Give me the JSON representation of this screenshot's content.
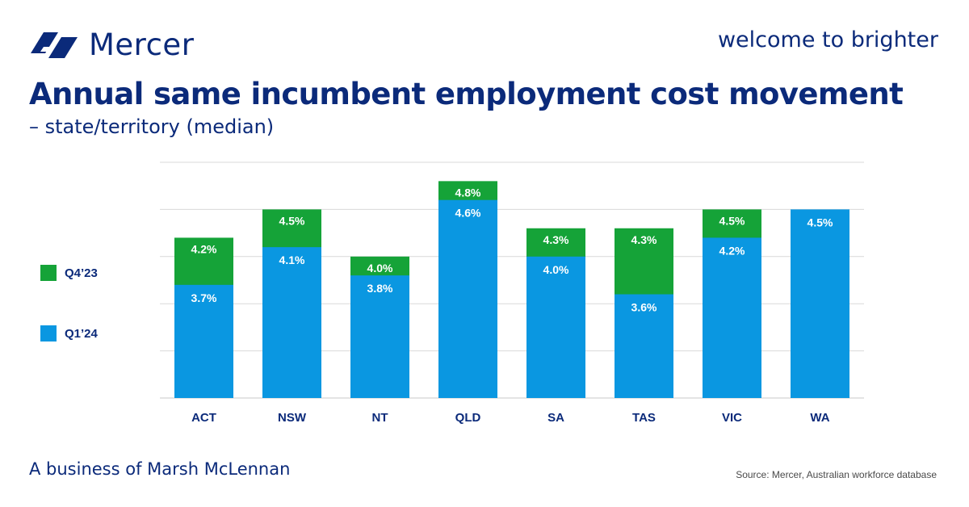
{
  "header": {
    "brand": "Mercer",
    "tagline": "welcome to brighter"
  },
  "title": "Annual same incumbent employment cost movement",
  "subtitle": "– state/territory (median)",
  "legend": [
    {
      "label": "Q4’23",
      "color": "#15a338"
    },
    {
      "label": "Q1’24",
      "color": "#0a97e1"
    }
  ],
  "footer": {
    "business": "A business of Marsh McLennan",
    "source": "Source: Mercer, Australian workforce database"
  },
  "chart_data": {
    "type": "bar",
    "categories": [
      "ACT",
      "NSW",
      "NT",
      "QLD",
      "SA",
      "TAS",
      "VIC",
      "WA"
    ],
    "series": [
      {
        "name": "Q4’23",
        "color": "#15a338",
        "values": [
          4.2,
          4.5,
          4.0,
          4.8,
          4.3,
          4.3,
          4.5,
          null
        ],
        "labels": [
          "4.2%",
          "4.5%",
          "4.0%",
          "4.8%",
          "4.3%",
          "4.3%",
          "4.5%",
          ""
        ]
      },
      {
        "name": "Q1’24",
        "color": "#0a97e1",
        "values": [
          3.7,
          4.1,
          3.8,
          4.6,
          4.0,
          3.6,
          4.2,
          4.5
        ],
        "labels": [
          "3.7%",
          "4.1%",
          "3.8%",
          "4.6%",
          "4.0%",
          "3.6%",
          "4.2%",
          "4.5%"
        ]
      }
    ],
    "ylim": [
      2.5,
      5.0
    ],
    "grid": true,
    "legend_position": "left"
  }
}
